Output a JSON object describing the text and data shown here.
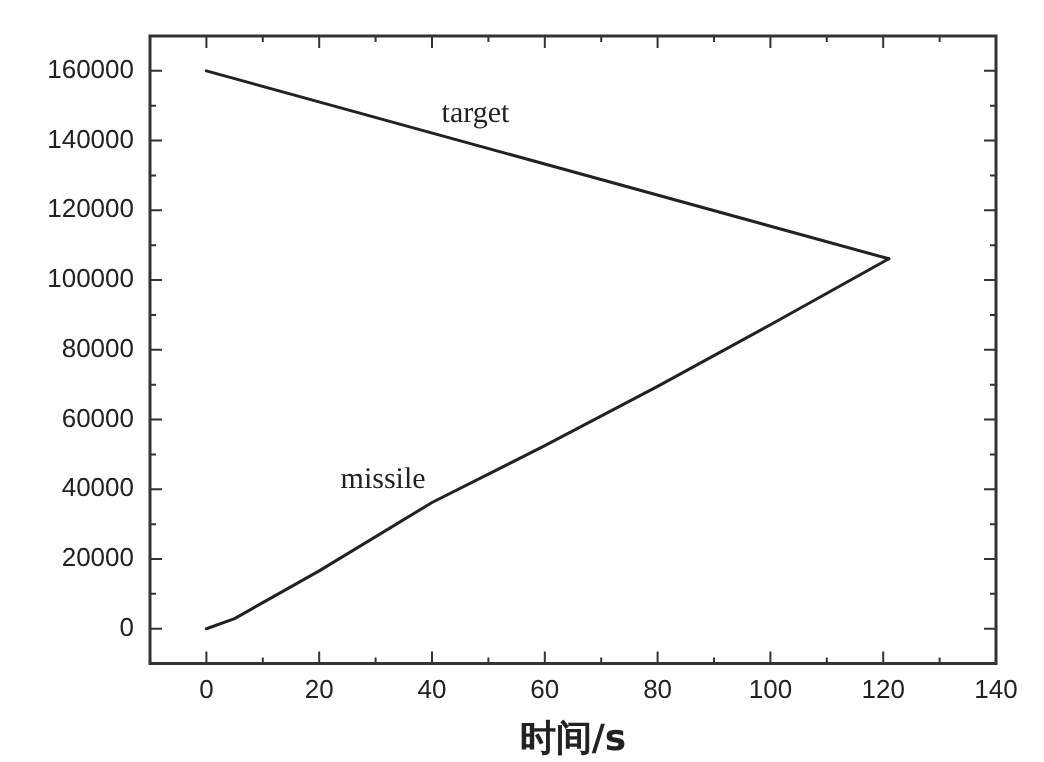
{
  "chart_data": {
    "type": "line",
    "xlabel": "时间/s",
    "xlim": [
      -10,
      140
    ],
    "xticks": [
      0,
      20,
      40,
      60,
      80,
      100,
      120,
      140
    ],
    "ylim": [
      -10000,
      170000
    ],
    "yticks": [
      0,
      20000,
      40000,
      60000,
      80000,
      100000,
      120000,
      140000,
      160000
    ],
    "legend": false,
    "marker": "none",
    "line_style": "solid",
    "series": [
      {
        "name": "target",
        "color": "#222222",
        "x": [
          0,
          121
        ],
        "values": [
          160000,
          106100
        ]
      },
      {
        "name": "missile",
        "color": "#222222",
        "x": [
          0,
          5,
          10,
          20,
          40,
          60,
          80,
          100,
          121
        ],
        "values": [
          0,
          2900,
          7500,
          16600,
          36200,
          52500,
          69500,
          87200,
          106100
        ]
      }
    ]
  }
}
